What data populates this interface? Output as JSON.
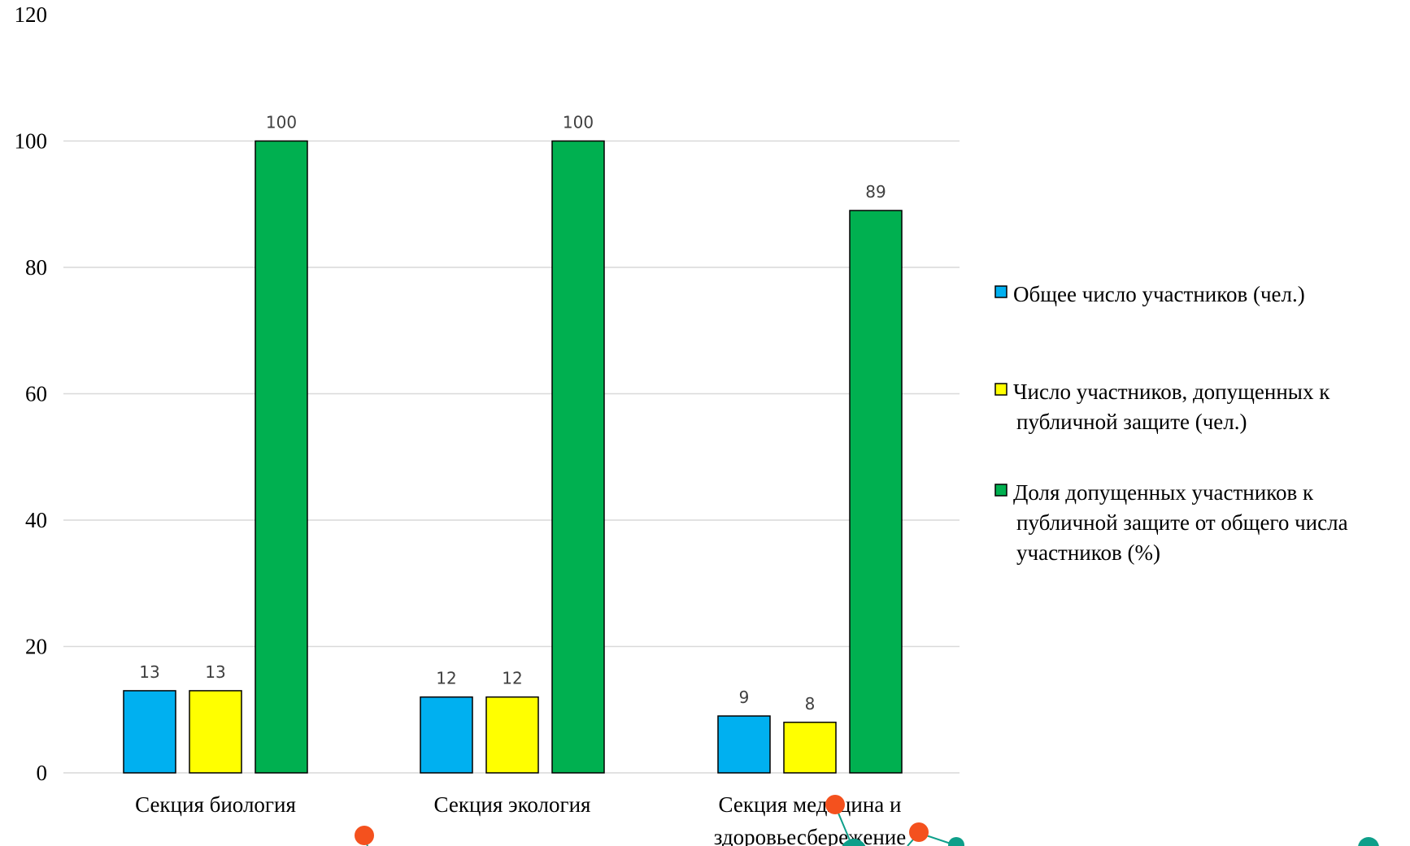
{
  "chart_data": {
    "type": "bar",
    "categories": [
      [
        "Секция биология"
      ],
      [
        "Секция экология"
      ],
      [
        "Секция медицина и",
        "здоровьесбережение"
      ]
    ],
    "series": [
      {
        "name": "Общее число участников (чел.)",
        "values": [
          13,
          12,
          9
        ],
        "color": "#00b0f0"
      },
      {
        "name": "Число участников, допущенных к публичной защите (чел.)",
        "values": [
          13,
          12,
          8
        ],
        "color": "#ffff00"
      },
      {
        "name": "Доля допущенных участников к публичной защите от общего числа участников (%)",
        "values": [
          100,
          100,
          89
        ],
        "color": "#00b050"
      }
    ],
    "legend_lines": [
      [
        "Общее число участников (чел.)"
      ],
      [
        "Число участников, допущенных к",
        "публичной защите (чел.)"
      ],
      [
        "Доля допущенных участников к",
        "публичной защите от общего числа",
        "участников (%)"
      ]
    ],
    "yticks": [
      0,
      20,
      40,
      60,
      80,
      100,
      120
    ],
    "ylim": [
      0,
      120
    ],
    "grid": true,
    "legend_position": "right",
    "data_labels": true
  },
  "decorations": {
    "red_dot_color": "#f4511e",
    "teal_dot_color": "#0e9f8a"
  }
}
